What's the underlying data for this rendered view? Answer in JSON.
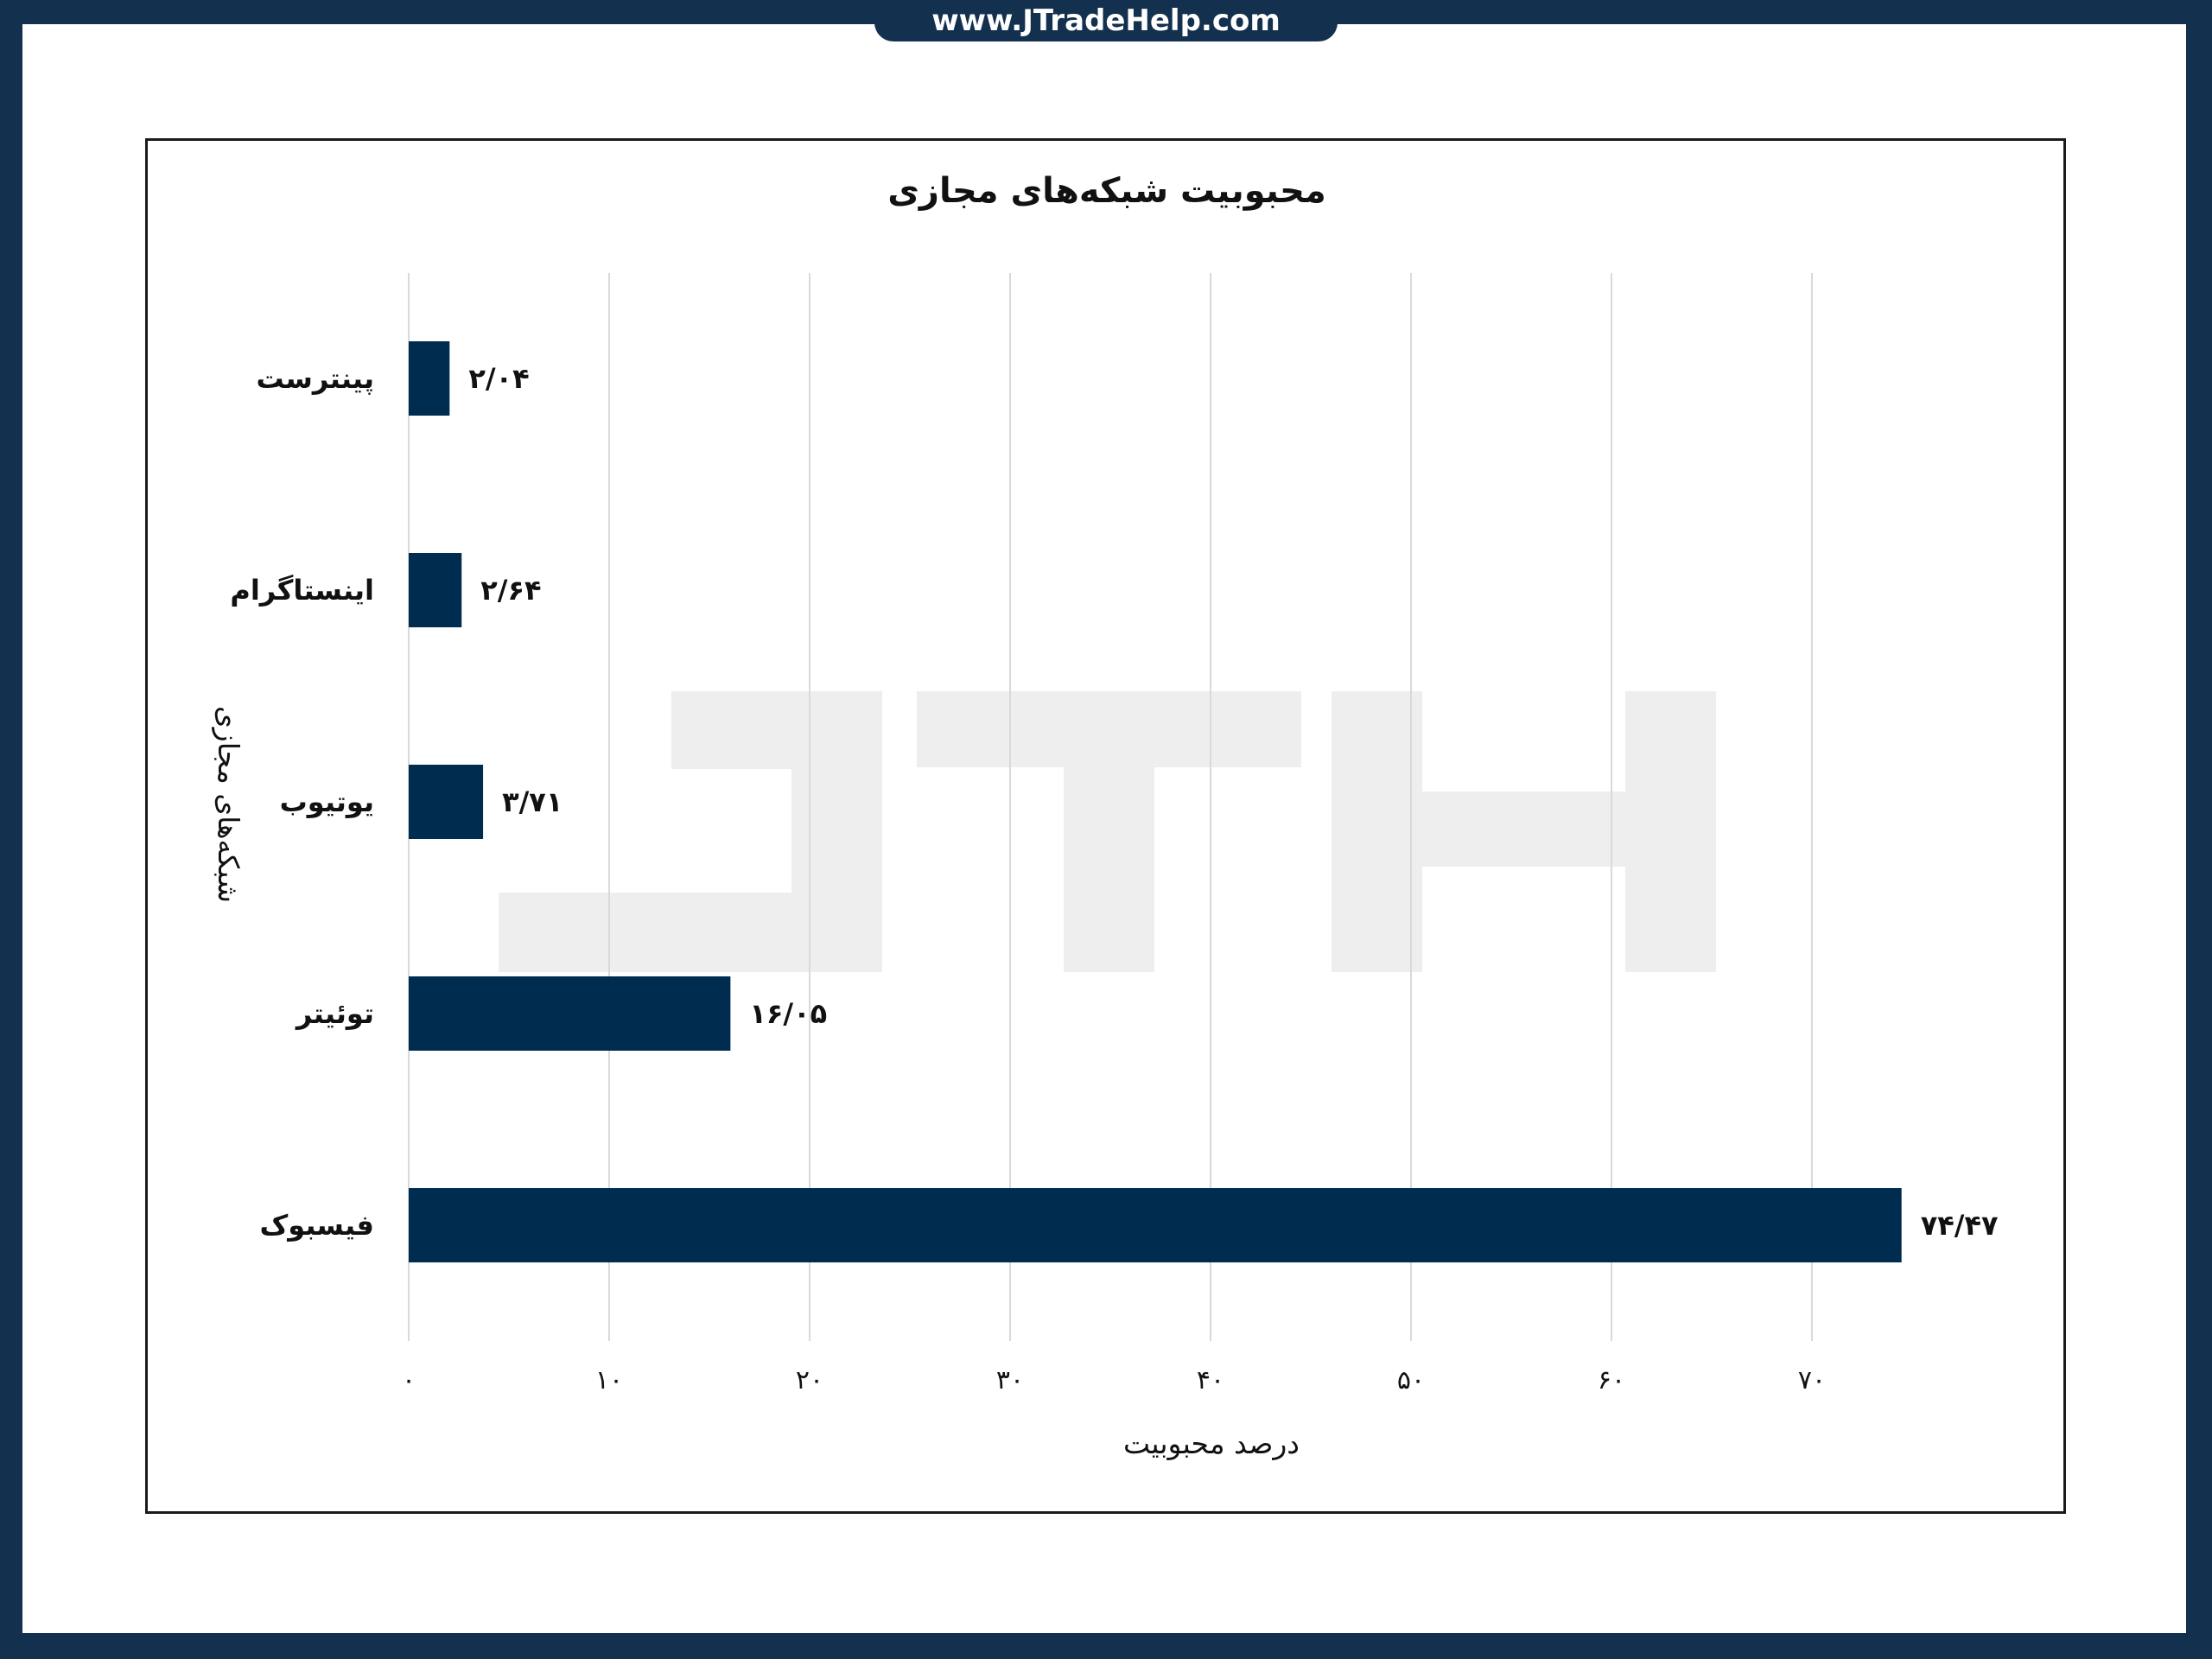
{
  "site": {
    "url": "www.JTradeHelp.com"
  },
  "watermark": "JTH",
  "chart_data": {
    "type": "bar",
    "orientation": "horizontal",
    "title": "محبوبیت شبکه‌های مجازی",
    "xlabel": "درصد محبوبیت",
    "ylabel": "شبکه‌های مجازی",
    "categories": [
      "پینترست",
      "اینستاگرام",
      "یوتیوب",
      "توئیتر",
      "فیسبوک"
    ],
    "values": [
      2.04,
      2.64,
      3.71,
      16.05,
      74.47
    ],
    "data_labels": [
      "۲/۰۴",
      "۲/۶۴",
      "۳/۷۱",
      "۱۶/۰۵",
      "۷۴/۴۷"
    ],
    "xlim": [
      0,
      75
    ],
    "xticks": [
      0,
      10,
      20,
      30,
      40,
      50,
      60,
      70
    ],
    "xtick_labels": [
      "۰",
      "۱۰",
      "۲۰",
      "۳۰",
      "۴۰",
      "۵۰",
      "۶۰",
      "۷۰"
    ],
    "grid": "vertical",
    "legend": "none",
    "colors": {
      "bar": "#002d4f",
      "grid": "#d9d9d9",
      "frame": "#13304f",
      "watermark": "#eeeeee"
    }
  }
}
